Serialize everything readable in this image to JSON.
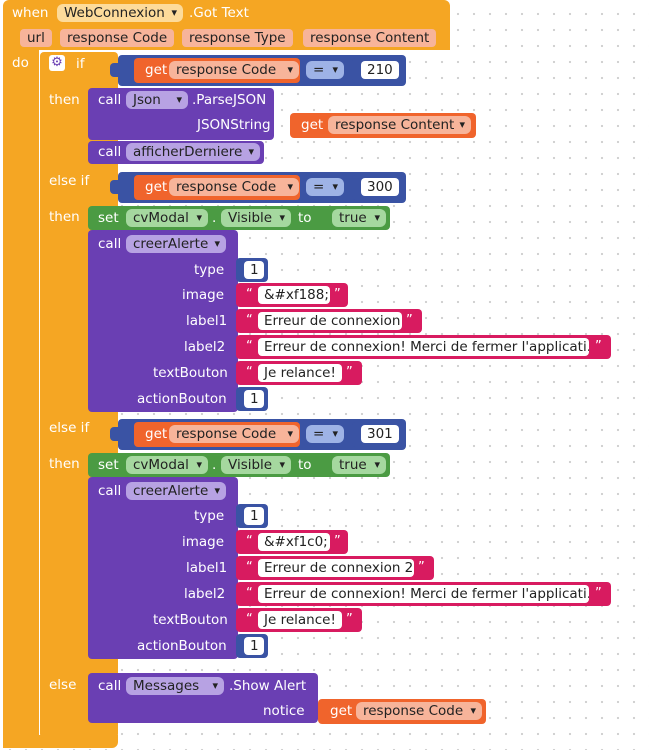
{
  "event": {
    "when_label": "when",
    "component": "WebConnexion",
    "event_name": ".Got Text",
    "params": [
      "url",
      "response Code",
      "response Type",
      "response Content"
    ],
    "do_label": "do"
  },
  "if1": {
    "if_label": "if",
    "get_label": "get",
    "var": "response Code",
    "op": "=",
    "value": "210",
    "then_label": "then"
  },
  "json_call": {
    "call_label": "call",
    "component": "Json",
    "method": ".ParseJSON",
    "arg_label": "JSONString",
    "get_label": "get",
    "var": "response Content"
  },
  "afficher_call": {
    "call_label": "call",
    "proc": "afficherDerniere"
  },
  "elseif1": {
    "label": "else if",
    "get_label": "get",
    "var": "response Code",
    "op": "=",
    "value": "300",
    "then_label": "then"
  },
  "set1": {
    "set_label": "set",
    "component": "cvModal",
    "dot": ".",
    "property": "Visible",
    "to_label": "to",
    "value": "true"
  },
  "alert1": {
    "call_label": "call",
    "proc": "creerAlerte",
    "args": {
      "type_label": "type",
      "type_value": "1",
      "image_label": "image",
      "image_value": "&#xf188;",
      "label1_label": "label1",
      "label1_value": "Erreur de connexion",
      "label2_label": "label2",
      "label2_value": "Erreur de connexion! Merci de fermer l'applicati...",
      "textBouton_label": "textBouton",
      "textBouton_value": "Je relance!",
      "actionBouton_label": "actionBouton",
      "actionBouton_value": "1"
    }
  },
  "elseif2": {
    "label": "else if",
    "get_label": "get",
    "var": "response Code",
    "op": "=",
    "value": "301",
    "then_label": "then"
  },
  "set2": {
    "set_label": "set",
    "component": "cvModal",
    "dot": ".",
    "property": "Visible",
    "to_label": "to",
    "value": "true"
  },
  "alert2": {
    "call_label": "call",
    "proc": "creerAlerte",
    "args": {
      "type_label": "type",
      "type_value": "1",
      "image_label": "image",
      "image_value": "&#xf1c0;",
      "label1_label": "label1",
      "label1_value": "Erreur de connexion 2",
      "label2_label": "label2",
      "label2_value": "Erreur de connexion! Merci de fermer l'applicati...",
      "textBouton_label": "textBouton",
      "textBouton_value": "Je relance!",
      "actionBouton_label": "actionBouton",
      "actionBouton_value": "1"
    }
  },
  "else_branch": {
    "label": "else",
    "call_label": "call",
    "component": "Messages",
    "method": ".Show Alert",
    "arg_label": "notice",
    "get_label": "get",
    "var": "response Code"
  },
  "quote_open": "“",
  "quote_close": "”",
  "icons": {
    "gear": "gear-icon",
    "dropdown": "chevron-down-icon"
  },
  "colors": {
    "event": "#f5a623",
    "control": "#f5a623",
    "procedure": "#6a3fb3",
    "compare": "#3a53a4",
    "variable": "#f0642c",
    "setter": "#4b9b43",
    "text": "#d81b60"
  }
}
